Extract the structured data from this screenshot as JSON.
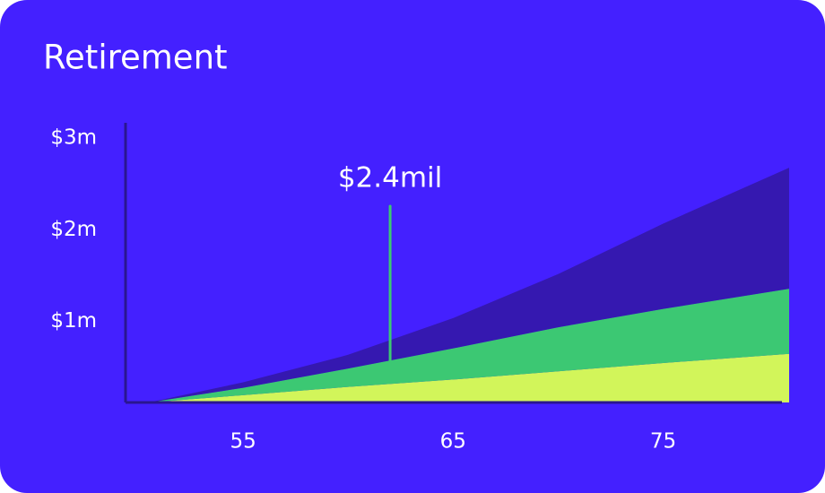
{
  "chart_data": {
    "type": "area",
    "title": "Retirement",
    "x": [
      50.5,
      55,
      60,
      65,
      70,
      75,
      81
    ],
    "series": [
      {
        "color": "#d2f55a",
        "values": [
          0,
          0.08,
          0.17,
          0.25,
          0.34,
          0.43,
          0.53
        ]
      },
      {
        "color": "#3cc873",
        "values": [
          0,
          0.08,
          0.2,
          0.34,
          0.48,
          0.59,
          0.71
        ]
      },
      {
        "color": "#3518b0",
        "values": [
          0,
          0.06,
          0.15,
          0.33,
          0.58,
          0.93,
          1.32
        ]
      }
    ],
    "stacked": true,
    "xlim": [
      49.4,
      81
    ],
    "xticks": [
      55,
      65,
      75
    ],
    "ylim": [
      0,
      3.05
    ],
    "yticks": [
      {
        "value": 1,
        "label": "$1m"
      },
      {
        "value": 2,
        "label": "$2m"
      },
      {
        "value": 3,
        "label": "$3m"
      }
    ],
    "annotation": {
      "text": "$2.4mil",
      "x": 62,
      "color": "#3cc873"
    },
    "background": "#4420ff"
  }
}
